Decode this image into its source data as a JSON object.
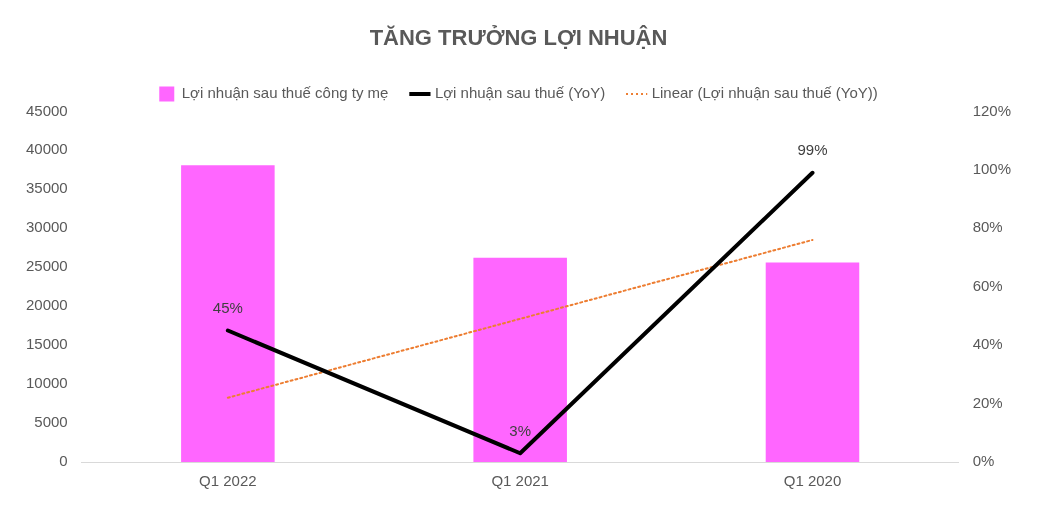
{
  "chart_data": {
    "type": "bar",
    "title": "TĂNG TRƯỞNG LỢI NHUẬN",
    "categories": [
      "Q1 2022",
      "Q1 2021",
      "Q1 2020"
    ],
    "series": [
      {
        "name": "Lợi nhuận sau thuế công ty mẹ",
        "color": "#ff66ff",
        "values": [
          38100,
          26200,
          25600
        ]
      },
      {
        "name": "Lợi nhuận sau thuế (YoY)",
        "type": "line",
        "axis": "y2",
        "color": "#000000",
        "values": [
          45,
          3,
          99
        ],
        "value_labels": [
          "45%",
          "3%",
          "99%"
        ]
      },
      {
        "name": "Linear (Lợi nhuận sau thuế (YoY))",
        "type": "line",
        "axis": "y2",
        "color": "#ed7d31",
        "line_style": "dotted",
        "values": [
          22,
          49,
          76
        ]
      }
    ],
    "ylim": [
      0,
      45000
    ],
    "yticks": [
      0,
      5000,
      10000,
      15000,
      20000,
      25000,
      30000,
      35000,
      40000,
      45000
    ],
    "y2lim": [
      0,
      120
    ],
    "y2ticks": [
      {
        "value": 0,
        "label": "0%"
      },
      {
        "value": 20,
        "label": "20%"
      },
      {
        "value": 40,
        "label": "40%"
      },
      {
        "value": 60,
        "label": "60%"
      },
      {
        "value": 80,
        "label": "80%"
      },
      {
        "value": 100,
        "label": "100%"
      },
      {
        "value": 120,
        "label": "120%"
      }
    ],
    "grid": false,
    "legend": "top",
    "marker": "none"
  }
}
